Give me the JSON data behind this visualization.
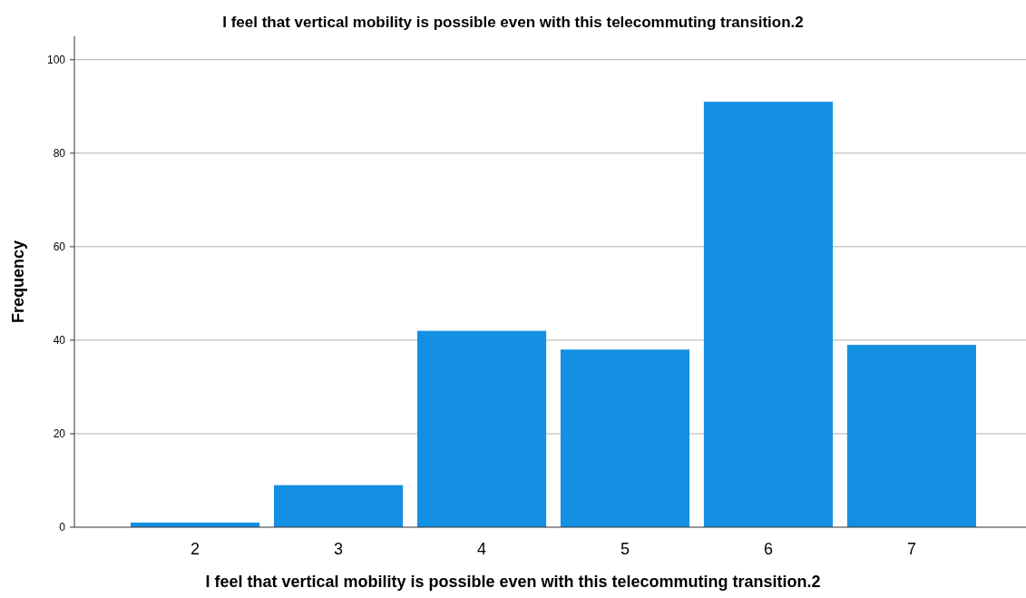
{
  "chart_data": {
    "type": "bar",
    "title": "I feel that vertical mobility is possible even with this telecommuting transition.2",
    "xlabel": "I feel that vertical mobility is possible even with this telecommuting transition.2",
    "ylabel": "Frequency",
    "categories": [
      "2",
      "3",
      "4",
      "5",
      "6",
      "7"
    ],
    "values": [
      1,
      9,
      42,
      38,
      91,
      39
    ],
    "color": "#1490e3",
    "ylim": [
      0,
      105
    ],
    "yticks": [
      0,
      20,
      40,
      60,
      80,
      100
    ],
    "grid": "y"
  }
}
